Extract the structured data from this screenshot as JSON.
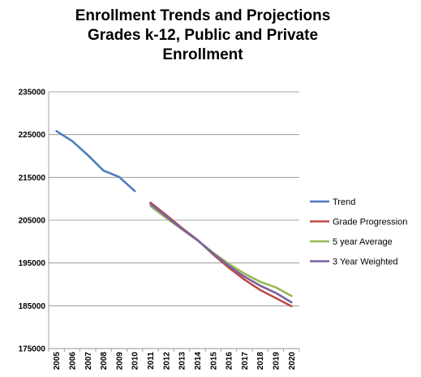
{
  "chart_data": {
    "type": "line",
    "title_lines": [
      "Enrollment Trends and Projections",
      "Grades k-12, Public and Private",
      "Enrollment"
    ],
    "xlabel": "",
    "ylabel": "",
    "categories": [
      "2005",
      "2006",
      "2007",
      "2008",
      "2009",
      "2010",
      "2011",
      "2012",
      "2013",
      "2014",
      "2015",
      "2016",
      "2017",
      "2018",
      "2019",
      "2020"
    ],
    "ylim": [
      175000,
      235000
    ],
    "yticks": [
      "175000",
      "185000",
      "195000",
      "205000",
      "215000",
      "225000",
      "235000"
    ],
    "grid": true,
    "legend_position": "right",
    "series": [
      {
        "name": "Trend",
        "color": "#4a7ebb",
        "values": [
          225800,
          223500,
          220200,
          216600,
          215100,
          211800,
          null,
          null,
          null,
          null,
          null,
          null,
          null,
          null,
          null,
          null
        ]
      },
      {
        "name": "Grade Progression",
        "color": "#be4b48",
        "values": [
          null,
          null,
          null,
          null,
          null,
          null,
          209100,
          206200,
          203200,
          200400,
          197000,
          193900,
          191100,
          188700,
          186800,
          184900
        ]
      },
      {
        "name": "5 year Average",
        "color": "#98b954",
        "values": [
          null,
          null,
          null,
          null,
          null,
          null,
          208300,
          205500,
          202900,
          200300,
          197400,
          194800,
          192500,
          190600,
          189300,
          187300
        ]
      },
      {
        "name": "3 Year Weighted",
        "color": "#7d60a0",
        "values": [
          null,
          null,
          null,
          null,
          null,
          null,
          208800,
          205900,
          203000,
          200300,
          197200,
          194300,
          191800,
          189700,
          188000,
          185800
        ]
      }
    ]
  }
}
